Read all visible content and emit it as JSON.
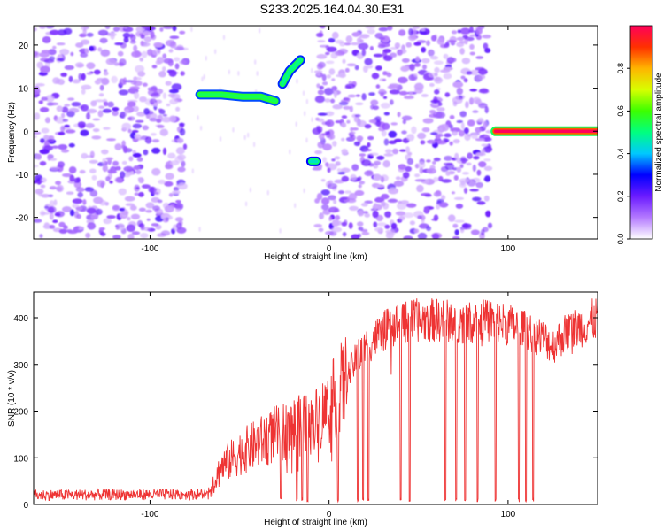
{
  "title": "S233.2025.164.04.30.E31",
  "chart_data": [
    {
      "type": "heatmap",
      "xlabel": "Height of straight line (km)",
      "ylabel": "Frequency (Hz)",
      "xlim": [
        -165,
        150
      ],
      "ylim": [
        -25,
        24.5
      ],
      "xticks": [
        -100,
        0,
        100
      ],
      "yticks": [
        -20,
        -10,
        0,
        10,
        20
      ],
      "colorbar": {
        "label": "Normalized spectral amplitude",
        "range": [
          0,
          1
        ],
        "ticks": [
          "0.0",
          "0.2",
          "0.4",
          "0.6",
          "0.8"
        ],
        "stops": [
          "#ffffff",
          "#b47aff",
          "#6b1bff",
          "#0000ff",
          "#00c8ff",
          "#00ff80",
          "#3cff00",
          "#d8ff00",
          "#ffb400",
          "#ff3000",
          "#ff005a"
        ]
      },
      "noise_regions": [
        [
          -165,
          -80
        ],
        [
          -7,
          90
        ]
      ],
      "signal_tracks": [
        {
          "x": [
            -72,
            -60,
            -48,
            -38,
            -30
          ],
          "y": [
            8.5,
            8.5,
            8,
            8,
            7
          ],
          "amplitude": 0.45
        },
        {
          "x": [
            -26,
            -22,
            -16
          ],
          "y": [
            11,
            14,
            16.5
          ],
          "amplitude": 0.4
        },
        {
          "x": [
            -10,
            -7
          ],
          "y": [
            -7,
            -7
          ],
          "amplitude": 0.35
        },
        {
          "x": [
            93,
            150
          ],
          "y": [
            0,
            0
          ],
          "amplitude": 1.0
        }
      ]
    },
    {
      "type": "line",
      "xlabel": "Height of straight line (km)",
      "ylabel": "SNR (10 * v/v)",
      "xlim": [
        -165,
        150
      ],
      "ylim": [
        0,
        455
      ],
      "xticks": [
        -100,
        0,
        100
      ],
      "yticks": [
        0,
        100,
        200,
        300,
        400
      ],
      "color": "#ee3333",
      "trend": [
        [
          -165,
          20
        ],
        [
          -68,
          22
        ],
        [
          -60,
          80
        ],
        [
          -50,
          110
        ],
        [
          -40,
          130
        ],
        [
          -30,
          150
        ],
        [
          -20,
          165
        ],
        [
          -10,
          170
        ],
        [
          -5,
          190
        ],
        [
          0,
          210
        ],
        [
          10,
          270
        ],
        [
          15,
          310
        ],
        [
          20,
          335
        ],
        [
          30,
          370
        ],
        [
          40,
          390
        ],
        [
          50,
          395
        ],
        [
          60,
          395
        ],
        [
          80,
          390
        ],
        [
          90,
          395
        ],
        [
          100,
          385
        ],
        [
          110,
          375
        ],
        [
          115,
          365
        ],
        [
          120,
          355
        ],
        [
          125,
          340
        ],
        [
          130,
          360
        ],
        [
          135,
          375
        ],
        [
          140,
          380
        ],
        [
          150,
          400
        ]
      ],
      "dropouts": [
        -27,
        -18,
        -15,
        -12,
        5,
        16,
        19,
        22,
        40,
        45,
        65,
        71,
        76,
        83,
        93,
        106,
        110,
        114
      ]
    }
  ]
}
